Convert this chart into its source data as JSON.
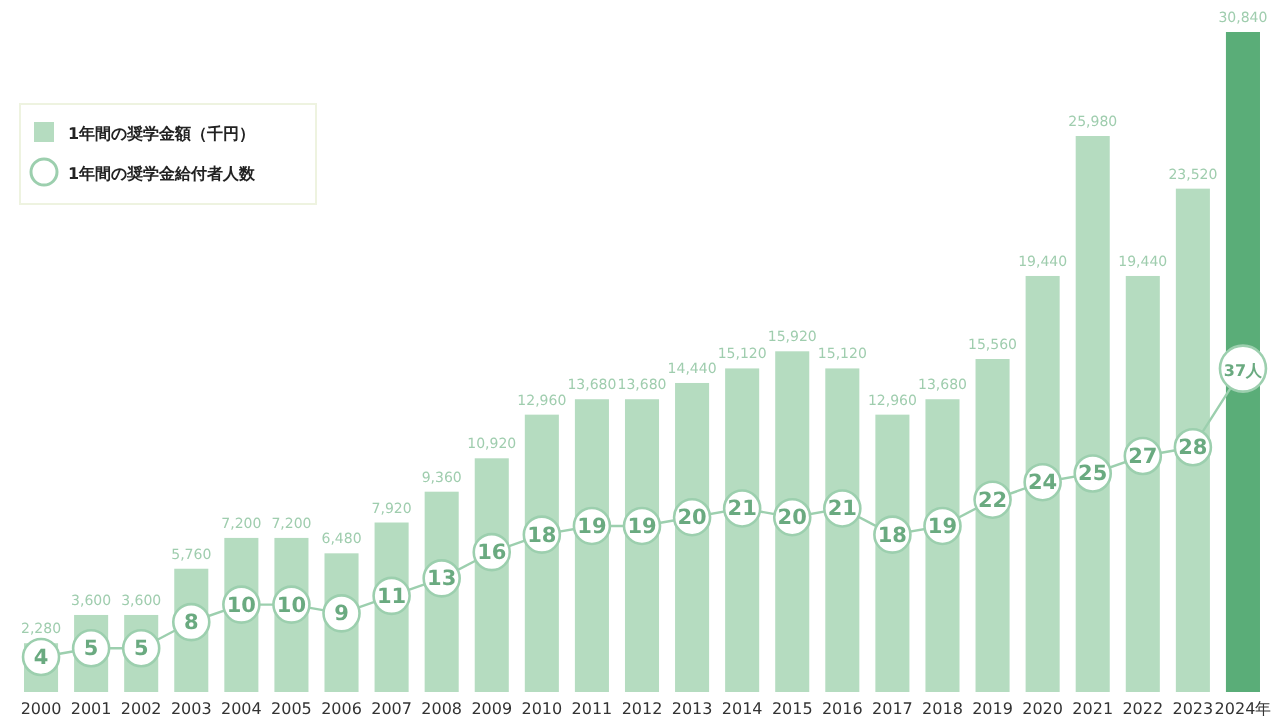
{
  "chart_data": {
    "type": "bar",
    "legend": "top left",
    "marker": "circle",
    "categories": [
      "2000",
      "2001",
      "2002",
      "2003",
      "2004",
      "2005",
      "2006",
      "2007",
      "2008",
      "2009",
      "2010",
      "2011",
      "2012",
      "2013",
      "2014",
      "2015",
      "2016",
      "2017",
      "2018",
      "2019",
      "2020",
      "2021",
      "2022",
      "2023",
      "2024年"
    ],
    "series": [
      {
        "name": "1年間の奨学金額（千円）",
        "colors": [
          "#b5dcc0",
          "#b5dcc0",
          "#b5dcc0",
          "#b5dcc0",
          "#b5dcc0",
          "#b5dcc0",
          "#b5dcc0",
          "#b5dcc0",
          "#b5dcc0",
          "#b5dcc0",
          "#b5dcc0",
          "#b5dcc0",
          "#b5dcc0",
          "#b5dcc0",
          "#b5dcc0",
          "#b5dcc0",
          "#b5dcc0",
          "#b5dcc0",
          "#b5dcc0",
          "#b5dcc0",
          "#b5dcc0",
          "#b5dcc0",
          "#b5dcc0",
          "#b5dcc0",
          "#5aad78"
        ],
        "values": [
          2280,
          3600,
          3600,
          5760,
          7200,
          7200,
          6480,
          7920,
          9360,
          10920,
          12960,
          13680,
          13680,
          14440,
          15120,
          15920,
          15120,
          12960,
          13680,
          15560,
          19440,
          25980,
          19440,
          23520,
          30840
        ],
        "value_labels": [
          "2,280",
          "3,600",
          "3,600",
          "5,760",
          "7,200",
          "7,200",
          "6,480",
          "7,920",
          "9,360",
          "10,920",
          "12,960",
          "13,680",
          "13,680",
          "14,440",
          "15,120",
          "15,920",
          "15,120",
          "12,960",
          "13,680",
          "15,560",
          "19,440",
          "25,980",
          "19,440",
          "23,520",
          "30,840"
        ]
      },
      {
        "name": "1年間の奨学金給付者人数",
        "type": "line",
        "axis": "y2",
        "color": "#9ccfae",
        "values": [
          4,
          5,
          5,
          8,
          10,
          10,
          9,
          11,
          13,
          16,
          18,
          19,
          19,
          20,
          21,
          20,
          21,
          18,
          19,
          22,
          24,
          25,
          27,
          28,
          37
        ],
        "value_labels": [
          "4",
          "5",
          "5",
          "8",
          "10",
          "10",
          "9",
          "11",
          "13",
          "16",
          "18",
          "19",
          "19",
          "20",
          "21",
          "20",
          "21",
          "18",
          "19",
          "22",
          "24",
          "25",
          "27",
          "28",
          "37人"
        ]
      }
    ]
  }
}
